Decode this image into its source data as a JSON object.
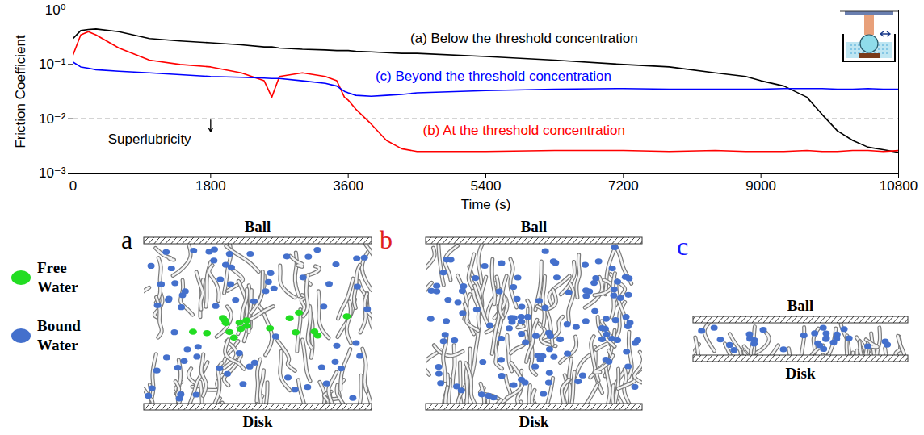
{
  "chart_data": {
    "type": "line",
    "x_label": "Time (s)",
    "y_label": "Friction Coefficient",
    "log": "y",
    "grid": false,
    "xlim": [
      0,
      10800
    ],
    "xticks": [
      0,
      1800,
      3600,
      5400,
      7200,
      9000,
      10800
    ],
    "ylim": [
      0.001,
      1
    ],
    "yticks": [
      {
        "value": 0.001,
        "label": "10⁻³"
      },
      {
        "value": 0.01,
        "label": "10⁻²"
      },
      {
        "value": 0.1,
        "label": "10⁻¹"
      },
      {
        "value": 1,
        "label": "10⁰"
      }
    ],
    "x": [
      0,
      100,
      200,
      300,
      600,
      1000,
      1400,
      1800,
      2200,
      2500,
      2600,
      2700,
      3000,
      3300,
      3450,
      3550,
      3600,
      3700,
      3900,
      4100,
      4300,
      4500,
      5400,
      6300,
      7200,
      7800,
      8400,
      8800,
      9000,
      9300,
      9600,
      9800,
      10000,
      10200,
      10400,
      10600,
      10800
    ],
    "series": [
      {
        "name": "(a) Below the threshold concentration",
        "color": "#000000",
        "label_x": 5900,
        "label_y": 0.3,
        "values": [
          0.3,
          0.42,
          0.44,
          0.45,
          0.4,
          0.3,
          0.27,
          0.25,
          0.23,
          0.21,
          0.21,
          0.2,
          0.19,
          0.185,
          0.18,
          0.18,
          0.18,
          0.175,
          0.17,
          0.165,
          0.16,
          0.16,
          0.14,
          0.12,
          0.1,
          0.09,
          0.07,
          0.06,
          0.05,
          0.04,
          0.025,
          0.012,
          0.006,
          0.004,
          0.003,
          0.0027,
          0.0024
        ]
      },
      {
        "name": "(b) At the threshold concentration",
        "color": "#ff0000",
        "label_x": 5900,
        "label_y": 0.0062,
        "values": [
          0.15,
          0.35,
          0.4,
          0.35,
          0.2,
          0.12,
          0.1,
          0.09,
          0.07,
          0.05,
          0.025,
          0.06,
          0.07,
          0.06,
          0.05,
          0.025,
          0.022,
          0.015,
          0.008,
          0.004,
          0.0028,
          0.0025,
          0.0025,
          0.0026,
          0.0026,
          0.0025,
          0.0026,
          0.0025,
          0.0025,
          0.0025,
          0.0026,
          0.0025,
          0.0025,
          0.0026,
          0.0026,
          0.0025,
          0.0026
        ]
      },
      {
        "name": "(c) Beyond the threshold concentration",
        "color": "#0000ff",
        "label_x": 5500,
        "label_y": 0.06,
        "values": [
          0.11,
          0.09,
          0.085,
          0.08,
          0.075,
          0.07,
          0.065,
          0.06,
          0.058,
          0.056,
          0.055,
          0.055,
          0.05,
          0.045,
          0.04,
          0.032,
          0.03,
          0.027,
          0.026,
          0.027,
          0.028,
          0.03,
          0.033,
          0.035,
          0.036,
          0.035,
          0.035,
          0.035,
          0.035,
          0.036,
          0.036,
          0.036,
          0.035,
          0.035,
          0.036,
          0.035,
          0.035
        ]
      }
    ],
    "reference_line": {
      "y": 0.01,
      "line_style": "dashed",
      "color": "#aaaaaa"
    },
    "annotations": [
      {
        "text": "Superlubricity",
        "x": 1000,
        "y": 0.0042,
        "arrow_x": 1800,
        "arrow_from": 0.0095,
        "arrow_to": 0.0058
      }
    ]
  },
  "diagram": {
    "legend": [
      {
        "label": "Free Water",
        "color": "#22dd22"
      },
      {
        "label": "Bound Water",
        "color": "#4470cc"
      }
    ],
    "panels": [
      {
        "letter": "a",
        "letter_color": "#000000",
        "top_label": "Ball",
        "bottom_label": "Disk",
        "free_water": true
      },
      {
        "letter": "b",
        "letter_color": "#e0211c",
        "top_label": "Ball",
        "bottom_label": "Disk",
        "free_water": false
      },
      {
        "letter": "c",
        "letter_color": "#1a1aff",
        "top_label": "Ball",
        "bottom_label": "Disk",
        "free_water": false
      }
    ]
  }
}
